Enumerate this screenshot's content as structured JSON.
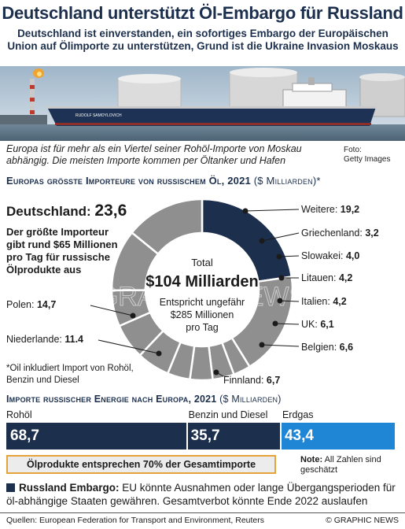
{
  "header": {
    "title": "Deutschland unterstützt Öl-Embargo für Russland",
    "subtitle": "Deutschland ist einverstanden, ein sofortiges Embargo der Europäischen Union auf Ölimporte zu unterstützen, Grund ist die Ukraine Invasion Moskaus"
  },
  "photo": {
    "ship_name": "RUDOLF SAMOYLOVICH",
    "caption": "Europa ist für mehr als ein Viertel seiner Rohöl-Importe von Moskau abhängig. Die meisten Importe kommen per Öltanker und Hafen",
    "credit_line1": "Foto:",
    "credit_line2": "Getty Images"
  },
  "section1": {
    "title": "Europas grösste Importeure von russischem Öl, 2021",
    "unit": "($ Milliarden)*",
    "germany_name": "Deutschland:",
    "germany_value": "23,6",
    "germany_desc": "Der größte Importeur gibt rund $65 Millionen pro Tag für russische Ölprodukte aus",
    "center_line1": "Total",
    "center_total": "$104 Milliarden",
    "center_line3": "Entspricht ungefähr",
    "center_line4": "$285 Millionen",
    "center_line5": "pro Tag",
    "footnote": "*Oil inkludiert Import von Rohöl, Benzin und Diesel",
    "watermark": "GRAPHIC NEWS"
  },
  "chart_data": [
    {
      "type": "pie",
      "title": "Europas grösste Importeure von russischem Öl, 2021",
      "unit": "($ Milliarden)*",
      "total": 104,
      "highlight": "Deutschland",
      "slices": [
        {
          "name": "Deutschland",
          "value": 23.6,
          "label": "23,6"
        },
        {
          "name": "Weitere",
          "value": 19.2,
          "label": "19,2"
        },
        {
          "name": "Griechenland",
          "value": 3.2,
          "label": "3,2"
        },
        {
          "name": "Slowakei",
          "value": 4.0,
          "label": "4,0"
        },
        {
          "name": "Litauen",
          "value": 4.2,
          "label": "4,2"
        },
        {
          "name": "Italien",
          "value": 4.2,
          "label": "4,2"
        },
        {
          "name": "UK",
          "value": 6.1,
          "label": "6,1"
        },
        {
          "name": "Belgien",
          "value": 6.6,
          "label": "6,6"
        },
        {
          "name": "Finnland",
          "value": 6.7,
          "label": "6,7"
        },
        {
          "name": "Niederlande",
          "value": 11.4,
          "label": "11.4"
        },
        {
          "name": "Polen",
          "value": 14.7,
          "label": "14,7"
        }
      ]
    },
    {
      "type": "bar",
      "orientation": "stacked-horizontal",
      "title": "Importe russischer Energie nach Europa, 2021",
      "unit": "($ Milliarden)",
      "categories": [
        "Rohöl",
        "Benzin und Diesel",
        "Erdgas"
      ],
      "values": [
        68.7,
        35.7,
        43.4
      ],
      "value_labels": [
        "68,7",
        "35,7",
        "43,4"
      ],
      "colors": [
        "#1c2f4d",
        "#1c2f4d",
        "#1f86d6"
      ]
    }
  ],
  "section2": {
    "title": "Importe russischer Energie nach Europa, 2021",
    "unit": "($ Milliarden)",
    "share_note": "Ölprodukte entsprechen 70% der Gesamtimporte",
    "note_label": "Note:",
    "note_text": "All Zahlen sind geschätzt"
  },
  "embargo": {
    "label": "Russland Embargo:",
    "text": "EU könnte Ausnahmen oder lange Übergangsperioden für öl-abhängige Staaten gewähren. Gesamtverbot könnte Ende 2022 auslaufen"
  },
  "footer": {
    "sources": "Quellen: European Federation for Transport and Environment, Reuters",
    "copyright": "© GRAPHIC NEWS"
  },
  "colors": {
    "navy": "#1c2f4d",
    "ring_gray": "#8f8f8f",
    "gas_blue": "#1f86d6",
    "accent_orange": "#e6a33a"
  }
}
